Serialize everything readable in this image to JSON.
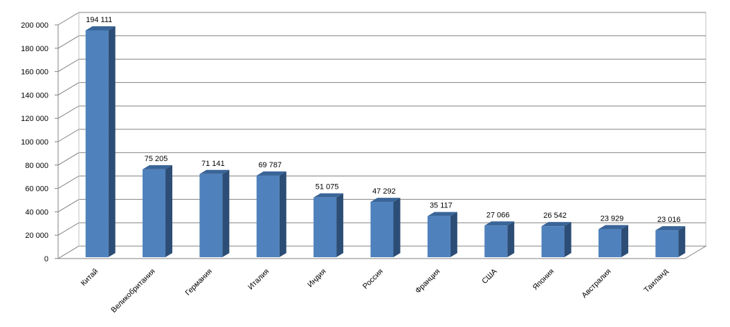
{
  "chart_data": {
    "type": "bar",
    "categories": [
      "Китай",
      "Великобритания",
      "Германия",
      "Италия",
      "Индия",
      "Россия",
      "Франция",
      "США",
      "Япония",
      "Австралия",
      "Таиланд"
    ],
    "values": [
      194111,
      75205,
      71141,
      69787,
      51075,
      47292,
      35117,
      27066,
      26542,
      23929,
      23016
    ],
    "data_labels": [
      "194 111",
      "75 205",
      "71 141",
      "69 787",
      "51 075",
      "47 292",
      "35 117",
      "27 066",
      "26 542",
      "23 929",
      "23 016"
    ],
    "y_ticks": [
      "0",
      "20 000",
      "40 000",
      "60 000",
      "80 000",
      "100 000",
      "120 000",
      "140 000",
      "160 000",
      "180 000",
      "200 000"
    ],
    "ylim": [
      0,
      200000
    ],
    "grid": true,
    "legend": "none",
    "bar_color": "#4f81bd",
    "bar_side_color": "#2c4d75",
    "bar_top_color": "#3a6598"
  }
}
